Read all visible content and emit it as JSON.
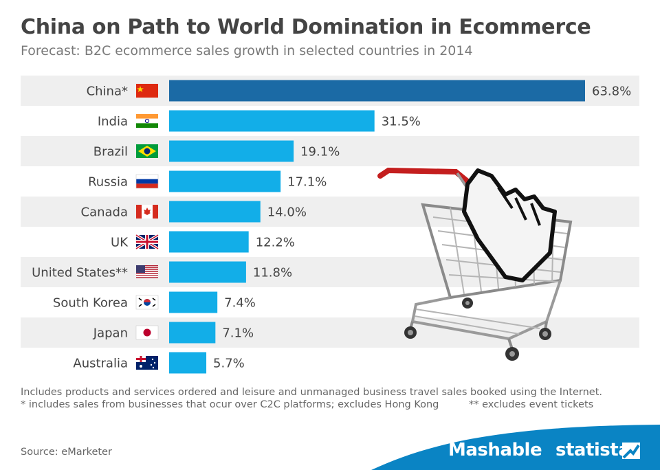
{
  "header": {
    "title": "China on Path to World Domination in Ecommerce",
    "subtitle": "Forecast: B2C ecommerce sales growth in selected countries in 2014"
  },
  "chart_data": {
    "type": "bar",
    "orientation": "horizontal",
    "categories": [
      "China*",
      "India",
      "Brazil",
      "Russia",
      "Canada",
      "UK",
      "United States**",
      "South Korea",
      "Japan",
      "Australia"
    ],
    "values": [
      63.8,
      31.5,
      19.1,
      17.1,
      14.0,
      12.2,
      11.8,
      7.4,
      7.1,
      5.7
    ],
    "value_labels": [
      "63.8%",
      "31.5%",
      "19.1%",
      "17.1%",
      "14.0%",
      "12.2%",
      "11.8%",
      "7.4%",
      "7.1%",
      "5.7%"
    ],
    "unit": "%",
    "flags": [
      "china-flag-icon",
      "india-flag-icon",
      "brazil-flag-icon",
      "russia-flag-icon",
      "canada-flag-icon",
      "uk-flag-icon",
      "usa-flag-icon",
      "south-korea-flag-icon",
      "japan-flag-icon",
      "australia-flag-icon"
    ],
    "highlight_color": "#1b6aa5",
    "bar_color": "#12aee8",
    "row_stripe_color": "#efefef",
    "grid": false
  },
  "footnotes": {
    "line1": "Includes products and services ordered and leisure and unmanaged business travel sales booked using the Internet.",
    "line2a": "* includes sales from businesses that ocur over C2C platforms; excludes Hong Kong",
    "line2b": "** excludes event tickets"
  },
  "source": "Source: eMarketer",
  "branding": {
    "mashable": "Mashable",
    "statista": "statista",
    "band_color": "#0a84c4"
  },
  "illustration": {
    "icon": "shopping-cart-with-pointer-hand-icon"
  }
}
